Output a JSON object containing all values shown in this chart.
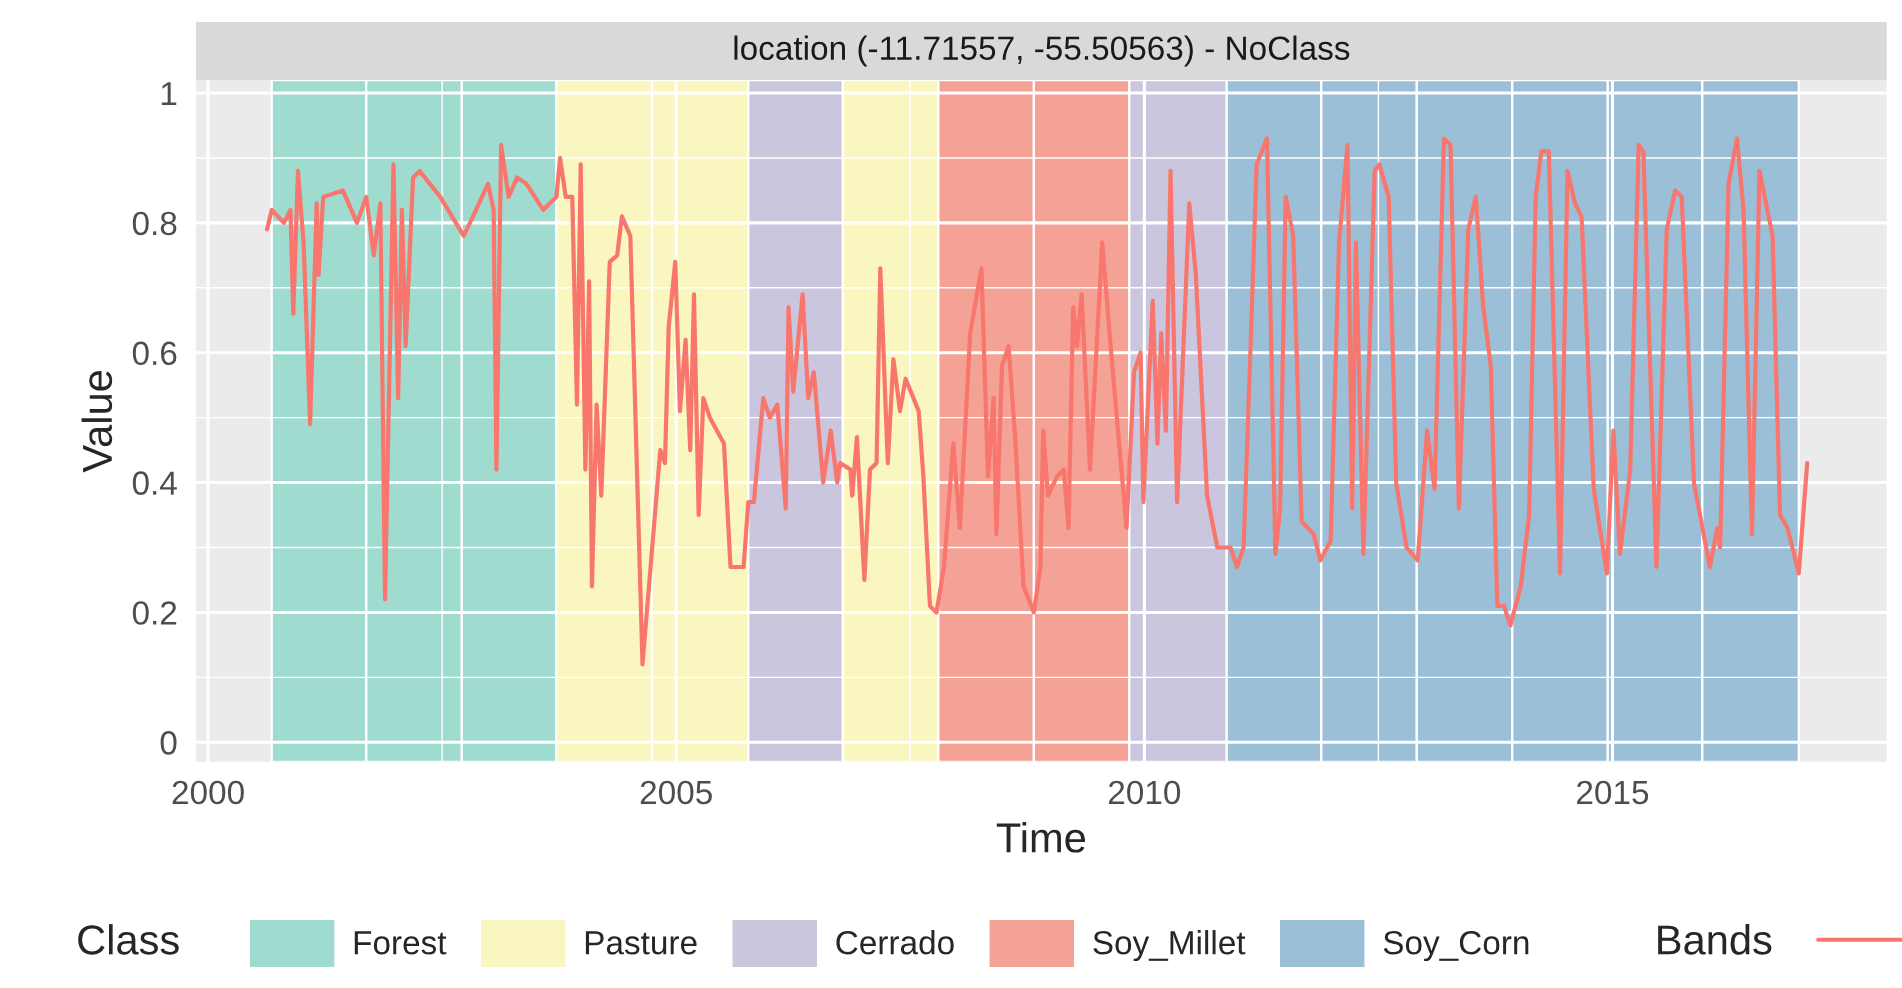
{
  "chart_data": {
    "type": "line",
    "title": "location (-11.71557, -55.50563) - NoClass",
    "xlabel": "Time",
    "ylabel": "Value",
    "legend_title": "Class",
    "xlim": [
      1999.87,
      2017.93
    ],
    "ylim": [
      -0.03,
      1.02
    ],
    "xticks": [
      2000,
      2005,
      2010,
      2015
    ],
    "yticks": [
      0,
      {
        "value": 0.2,
        "label": "0.2"
      },
      {
        "value": 0.4,
        "label": "0.4"
      },
      {
        "value": 0.6,
        "label": "0.6"
      },
      {
        "value": 0.8,
        "label": "0.8"
      },
      1
    ],
    "annotations": [
      "Bands"
    ],
    "grid": true,
    "legend": "bottom",
    "line_style": "solid",
    "marker": "none",
    "bands": [
      {
        "axis": "x",
        "from": 2000.68,
        "to": 2001.69,
        "label": "Forest",
        "color": "#a0dbd0"
      },
      {
        "axis": "x",
        "from": 2001.69,
        "to": 2002.71,
        "color": "#a0dbd0"
      },
      {
        "axis": "x",
        "from": 2002.71,
        "to": 2003.72,
        "color": "#a0dbd0"
      },
      {
        "axis": "x",
        "from": 2003.72,
        "to": 2004.74,
        "label": "Pasture",
        "color": "#f9f6bf"
      },
      {
        "axis": "x",
        "from": 2004.74,
        "to": 2005.77,
        "color": "#f9f6bf"
      },
      {
        "axis": "x",
        "from": 2005.77,
        "to": 2006.78,
        "label": "Cerrado",
        "color": "#c9c6de"
      },
      {
        "axis": "x",
        "from": 2006.78,
        "to": 2007.8,
        "color": "#f9f6bf"
      },
      {
        "axis": "x",
        "from": 2007.8,
        "to": 2008.82,
        "label": "Soy_Millet",
        "color": "#f4a196"
      },
      {
        "axis": "x",
        "from": 2008.82,
        "to": 2009.84,
        "color": "#f4a196"
      },
      {
        "axis": "x",
        "from": 2009.84,
        "to": 2010.88,
        "color": "#c9c6de"
      },
      {
        "axis": "x",
        "from": 2010.88,
        "to": 2011.89,
        "label": "Soy_Corn",
        "color": "#9cbfd8"
      },
      {
        "axis": "x",
        "from": 2011.89,
        "to": 2012.91,
        "color": "#9cbfd8"
      },
      {
        "axis": "x",
        "from": 2012.91,
        "to": 2013.93,
        "color": "#9cbfd8"
      },
      {
        "axis": "x",
        "from": 2013.93,
        "to": 2014.95,
        "color": "#9cbfd8"
      },
      {
        "axis": "x",
        "from": 2014.95,
        "to": 2015.96,
        "color": "#9cbfd8"
      },
      {
        "axis": "x",
        "from": 2015.96,
        "to": 2016.99,
        "color": "#9cbfd8"
      }
    ],
    "series": [
      {
        "color": "#f8766d",
        "x": [
          2000.63,
          2000.68,
          2000.81,
          2000.88,
          2000.91,
          2000.96,
          2001.02,
          2001.09,
          2001.16,
          2001.18,
          2001.23,
          2001.44,
          2001.59,
          2001.69,
          2001.77,
          2001.84,
          2001.89,
          2001.98,
          2002.03,
          2002.07,
          2002.11,
          2002.19,
          2002.26,
          2002.48,
          2002.73,
          2002.83,
          2002.99,
          2003.05,
          2003.08,
          2003.13,
          2003.21,
          2003.3,
          2003.4,
          2003.58,
          2003.72,
          2003.76,
          2003.82,
          2003.89,
          2003.94,
          2003.98,
          2004.03,
          2004.07,
          2004.1,
          2004.15,
          2004.2,
          2004.29,
          2004.37,
          2004.42,
          2004.51,
          2004.64,
          2004.83,
          2004.88,
          2004.92,
          2004.99,
          2005.04,
          2005.1,
          2005.15,
          2005.19,
          2005.24,
          2005.29,
          2005.36,
          2005.51,
          2005.58,
          2005.72,
          2005.77,
          2005.83,
          2005.93,
          2006.0,
          2006.08,
          2006.17,
          2006.2,
          2006.25,
          2006.35,
          2006.41,
          2006.47,
          2006.57,
          2006.65,
          2006.72,
          2006.75,
          2006.86,
          2006.88,
          2006.93,
          2007.01,
          2007.07,
          2007.14,
          2007.18,
          2007.26,
          2007.32,
          2007.39,
          2007.45,
          2007.59,
          2007.64,
          2007.71,
          2007.78,
          2007.86,
          2007.96,
          2008.03,
          2008.14,
          2008.26,
          2008.33,
          2008.39,
          2008.42,
          2008.48,
          2008.55,
          2008.62,
          2008.71,
          2008.82,
          2008.89,
          2008.92,
          2008.97,
          2009.07,
          2009.14,
          2009.19,
          2009.24,
          2009.28,
          2009.33,
          2009.42,
          2009.55,
          2009.64,
          2009.81,
          2009.89,
          2009.96,
          2009.99,
          2010.09,
          2010.14,
          2010.18,
          2010.23,
          2010.28,
          2010.35,
          2010.48,
          2010.55,
          2010.67,
          2010.78,
          2010.92,
          2010.99,
          2011.06,
          2011.13,
          2011.2,
          2011.31,
          2011.4,
          2011.45,
          2011.51,
          2011.59,
          2011.68,
          2011.81,
          2011.88,
          2011.99,
          2012.08,
          2012.17,
          2012.22,
          2012.26,
          2012.34,
          2012.46,
          2012.51,
          2012.61,
          2012.69,
          2012.8,
          2012.92,
          2013.02,
          2013.1,
          2013.2,
          2013.27,
          2013.36,
          2013.46,
          2013.54,
          2013.62,
          2013.7,
          2013.77,
          2013.84,
          2013.91,
          2014.02,
          2014.11,
          2014.18,
          2014.24,
          2014.32,
          2014.44,
          2014.52,
          2014.6,
          2014.67,
          2014.8,
          2014.94,
          2015.01,
          2015.08,
          2015.19,
          2015.28,
          2015.33,
          2015.47,
          2015.58,
          2015.67,
          2015.74,
          2015.87,
          2016.04,
          2016.12,
          2016.15,
          2016.24,
          2016.33,
          2016.4,
          2016.49,
          2016.57,
          2016.71,
          2016.79,
          2016.87,
          2016.99,
          2017.08
        ],
        "values": [
          0.79,
          0.82,
          0.8,
          0.82,
          0.66,
          0.88,
          0.77,
          0.49,
          0.83,
          0.72,
          0.84,
          0.85,
          0.8,
          0.84,
          0.75,
          0.83,
          0.22,
          0.89,
          0.53,
          0.82,
          0.61,
          0.87,
          0.88,
          0.84,
          0.78,
          0.81,
          0.86,
          0.82,
          0.42,
          0.92,
          0.84,
          0.87,
          0.86,
          0.82,
          0.84,
          0.9,
          0.84,
          0.84,
          0.52,
          0.89,
          0.42,
          0.71,
          0.24,
          0.52,
          0.38,
          0.74,
          0.75,
          0.81,
          0.78,
          0.12,
          0.45,
          0.43,
          0.64,
          0.74,
          0.51,
          0.62,
          0.45,
          0.69,
          0.35,
          0.53,
          0.5,
          0.46,
          0.27,
          0.27,
          0.37,
          0.37,
          0.53,
          0.5,
          0.52,
          0.36,
          0.67,
          0.54,
          0.69,
          0.53,
          0.57,
          0.4,
          0.48,
          0.4,
          0.43,
          0.42,
          0.38,
          0.47,
          0.25,
          0.42,
          0.43,
          0.73,
          0.43,
          0.59,
          0.51,
          0.56,
          0.51,
          0.41,
          0.21,
          0.2,
          0.27,
          0.46,
          0.33,
          0.63,
          0.73,
          0.41,
          0.53,
          0.32,
          0.58,
          0.61,
          0.47,
          0.24,
          0.2,
          0.27,
          0.48,
          0.38,
          0.41,
          0.42,
          0.33,
          0.67,
          0.61,
          0.69,
          0.42,
          0.77,
          0.61,
          0.33,
          0.57,
          0.6,
          0.37,
          0.68,
          0.46,
          0.63,
          0.48,
          0.88,
          0.37,
          0.83,
          0.72,
          0.38,
          0.3,
          0.3,
          0.27,
          0.3,
          0.59,
          0.89,
          0.93,
          0.29,
          0.36,
          0.84,
          0.78,
          0.34,
          0.32,
          0.28,
          0.31,
          0.77,
          0.92,
          0.36,
          0.77,
          0.29,
          0.88,
          0.89,
          0.84,
          0.4,
          0.3,
          0.28,
          0.48,
          0.39,
          0.93,
          0.92,
          0.36,
          0.79,
          0.84,
          0.67,
          0.58,
          0.21,
          0.21,
          0.18,
          0.24,
          0.35,
          0.84,
          0.91,
          0.91,
          0.26,
          0.88,
          0.83,
          0.81,
          0.39,
          0.26,
          0.48,
          0.29,
          0.42,
          0.92,
          0.91,
          0.27,
          0.79,
          0.85,
          0.84,
          0.4,
          0.27,
          0.33,
          0.3,
          0.86,
          0.93,
          0.82,
          0.32,
          0.88,
          0.78,
          0.35,
          0.33,
          0.26,
          0.43
        ]
      }
    ]
  }
}
